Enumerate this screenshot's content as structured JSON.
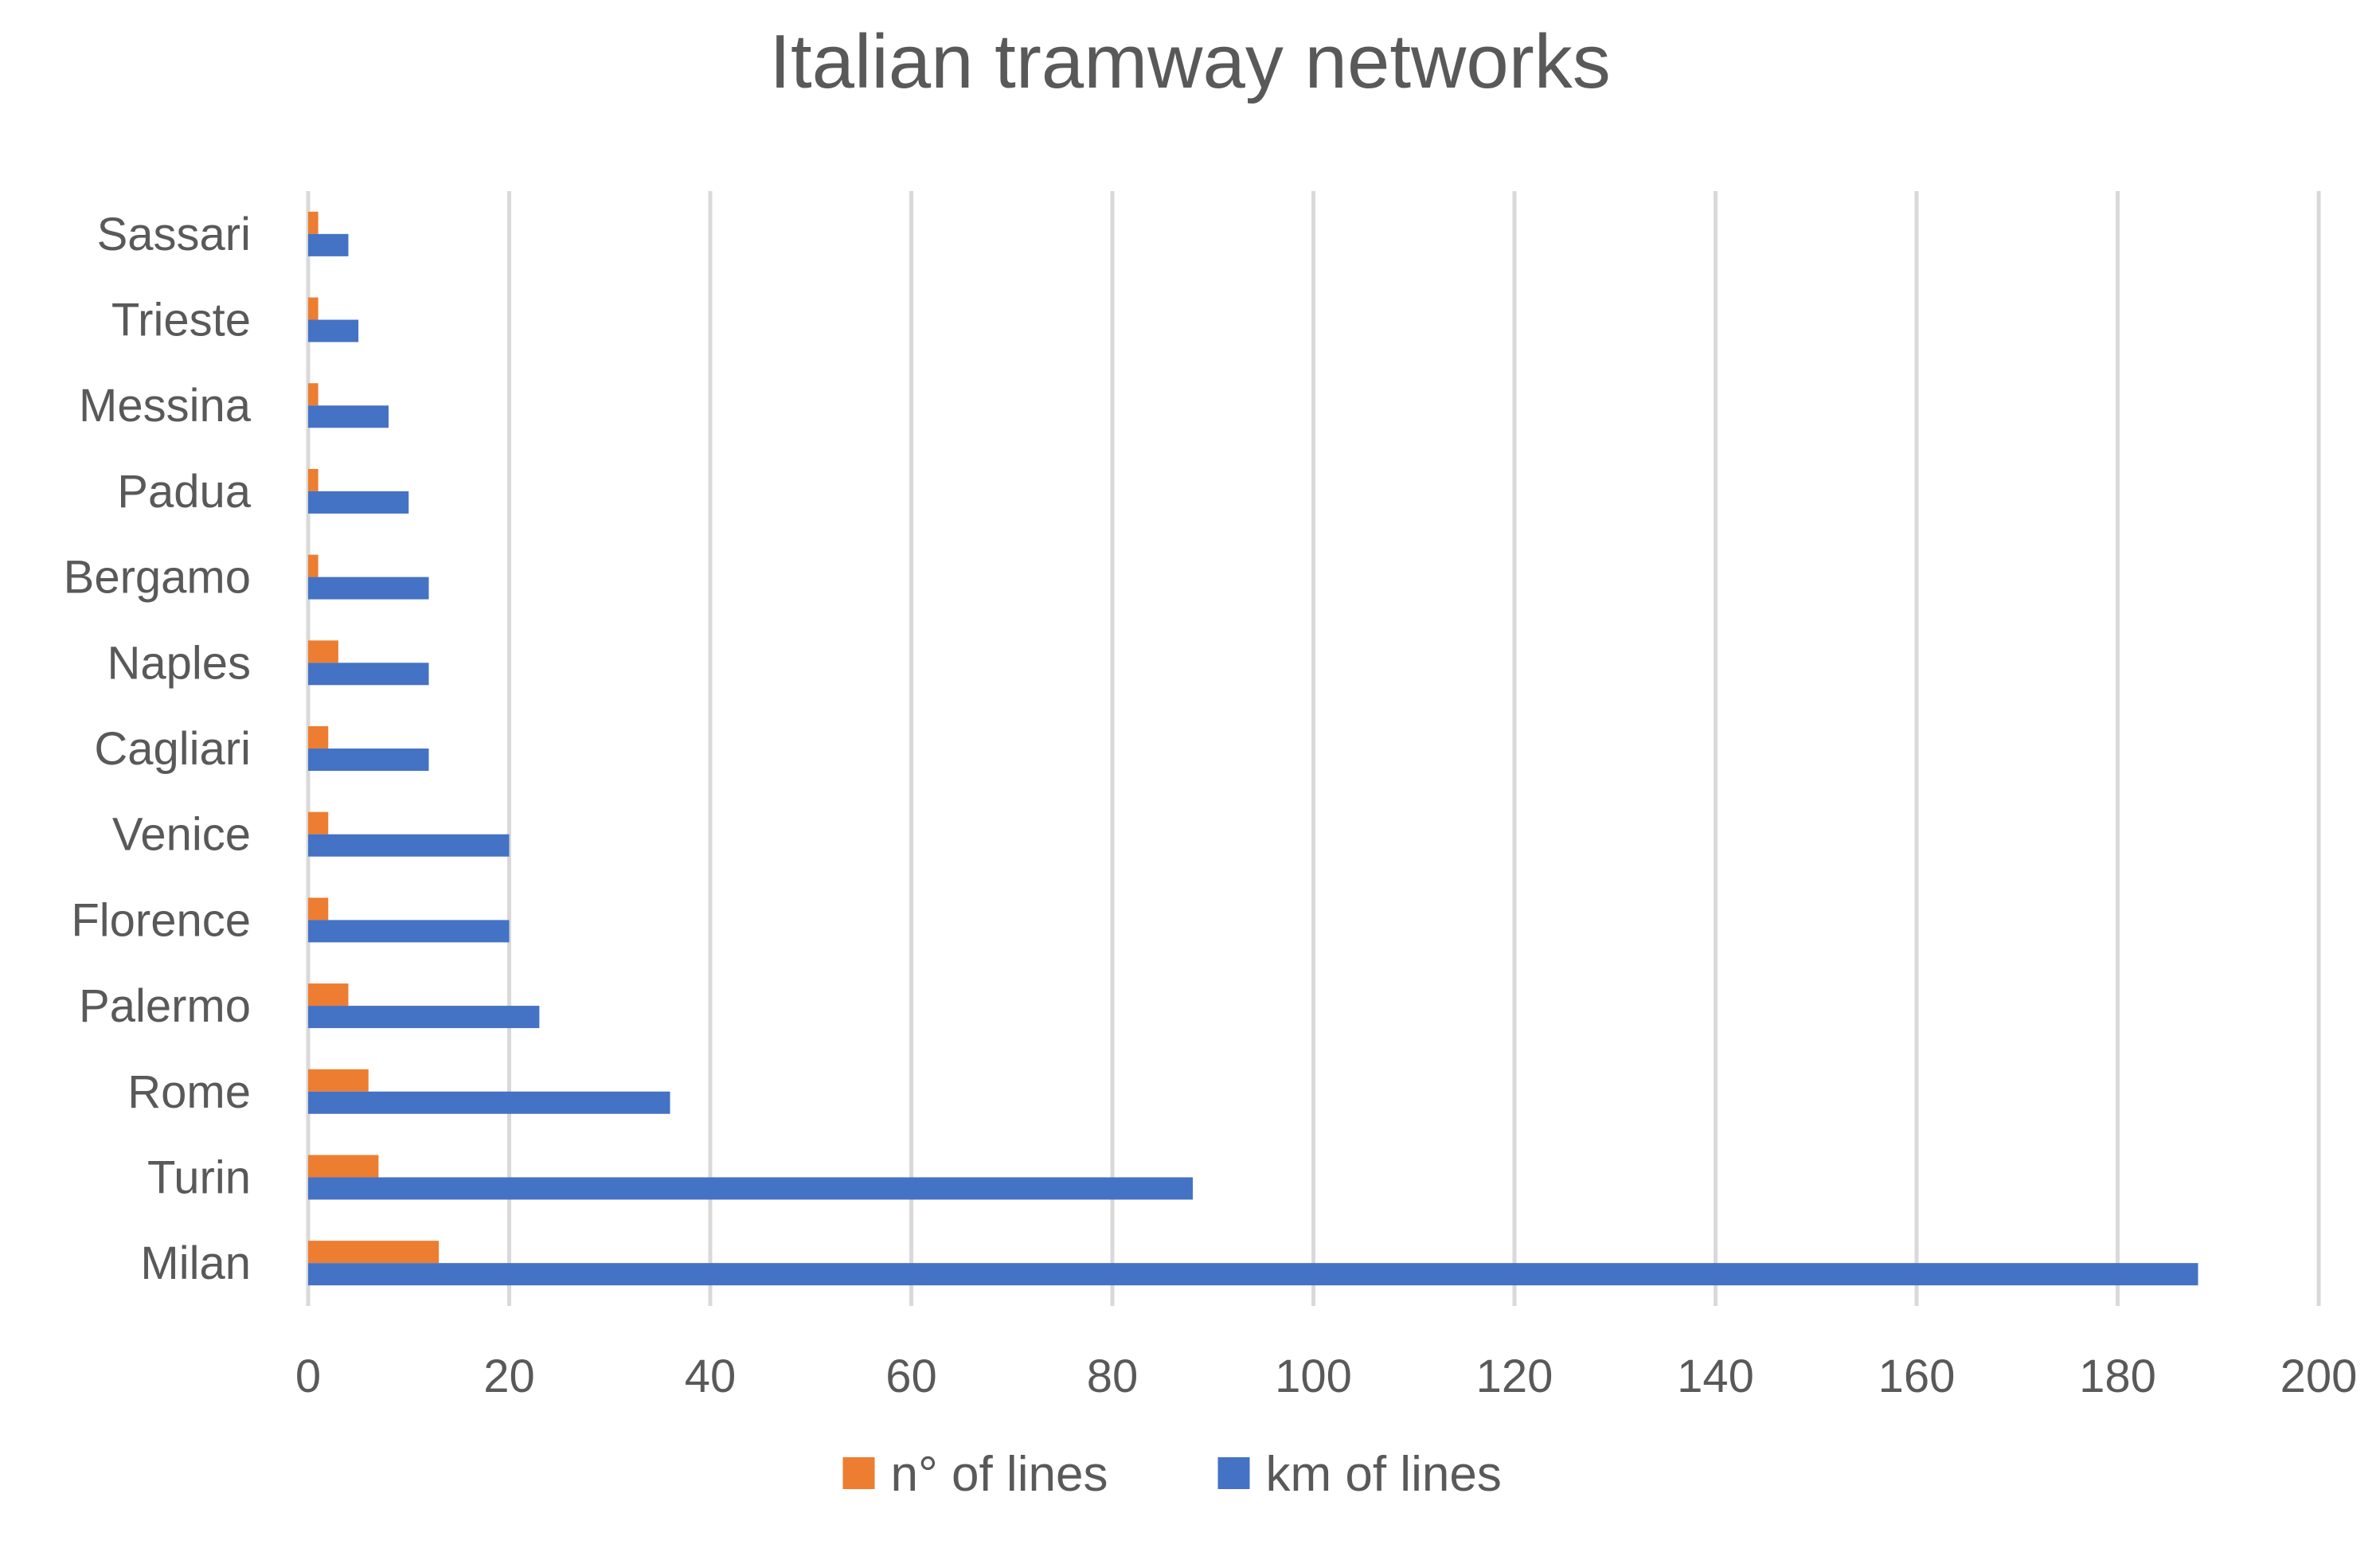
{
  "chart_data": {
    "type": "bar",
    "orientation": "horizontal",
    "title": "Italian tramway networks",
    "xlabel": "",
    "ylabel": "",
    "xlim": [
      0,
      200
    ],
    "x_ticks": [
      "0",
      "20",
      "40",
      "60",
      "80",
      "100",
      "120",
      "140",
      "160",
      "180",
      "200"
    ],
    "x_tick_values": [
      0,
      20,
      40,
      60,
      80,
      100,
      120,
      140,
      160,
      180,
      200
    ],
    "grid": "vertical",
    "legend_position": "bottom",
    "categories": [
      "Milan",
      "Turin",
      "Rome",
      "Palermo",
      "Florence",
      "Venice",
      "Cagliari",
      "Naples",
      "Bergamo",
      "Padua",
      "Messina",
      "Trieste",
      "Sassari"
    ],
    "series": [
      {
        "name": "n° of lines",
        "color": "#ED7D31",
        "values": [
          13,
          7,
          6,
          4,
          2,
          2,
          2,
          3,
          1,
          1,
          1,
          1,
          1
        ]
      },
      {
        "name": "km of lines",
        "color": "#4472C4",
        "values": [
          188,
          88,
          36,
          23,
          20,
          20,
          12,
          12,
          12,
          10,
          8,
          5,
          4
        ]
      }
    ],
    "colors": {
      "gridline": "#D9D9D9",
      "text": "#595959"
    }
  }
}
